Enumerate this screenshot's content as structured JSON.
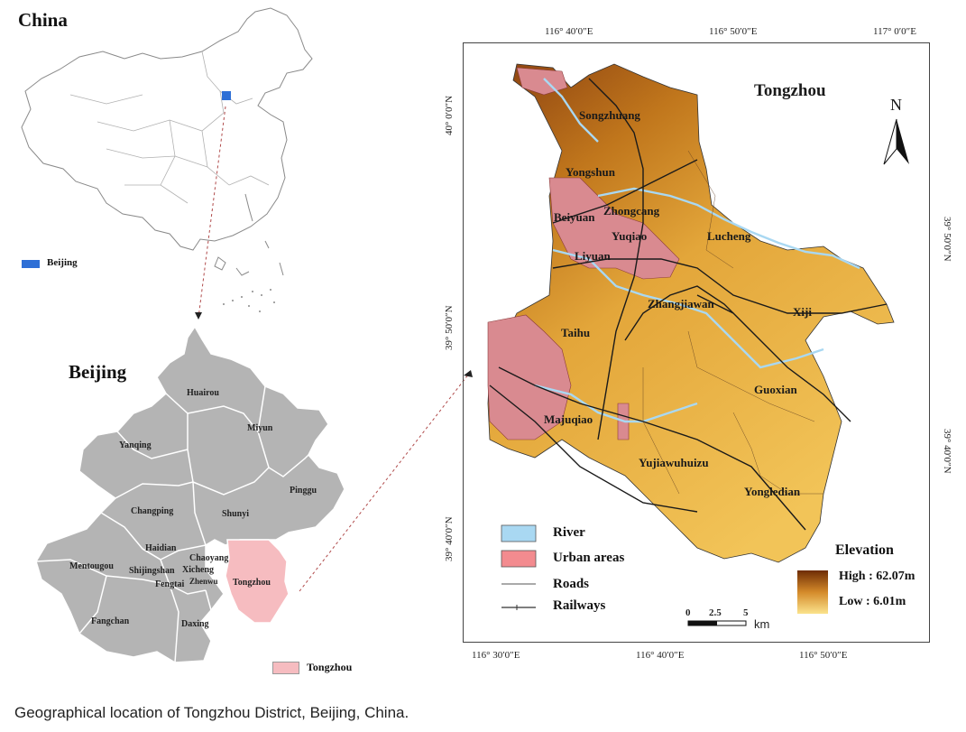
{
  "china_panel": {
    "title": "China",
    "legend_label": "Beijing",
    "legend_color": "#2e6fd6"
  },
  "beijing_panel": {
    "title": "Beijing",
    "districts": [
      "Huairou",
      "Miyun",
      "Yanqing",
      "Pinggu",
      "Changping",
      "Shunyi",
      "Haidian",
      "Chaoyang",
      "Mentougou",
      "Shijingshan",
      "Xicheng",
      "Fengtai",
      "Zhenwu",
      "Tongzhou",
      "Fangchan",
      "Daxing"
    ],
    "legend_label": "Tongzhou",
    "highlight_color": "#f6bcc0",
    "district_fill": "#b4b4b4"
  },
  "tongzhou_panel": {
    "title": "Tongzhou",
    "north_label": "N",
    "places": [
      "Songzhuang",
      "Yongshun",
      "Beiyuan",
      "Zhongcang",
      "Yuqiao",
      "Liyuan",
      "Lucheng",
      "Zhangjiawan",
      "Xiji",
      "Taihu",
      "Guoxian",
      "Majuqiao",
      "Yujiawuhuizu",
      "Yongledian"
    ],
    "top_coords": [
      "116° 40′0″E",
      "116° 50′0″E",
      "117° 0′0″E"
    ],
    "bottom_coords": [
      "116° 30′0″E",
      "116° 40′0″E",
      "116° 50′0″E"
    ],
    "left_coords": [
      "40° 0′0″N",
      "39° 50′0″N",
      "39° 40′0″N"
    ],
    "right_coords": [
      "39° 50′0″N",
      "39° 40′0″N"
    ],
    "legend": {
      "river": "River",
      "urban": "Urban areas",
      "roads": "Roads",
      "railways": "Railways",
      "river_color": "#a9d8f2",
      "urban_color": "#f38b8f"
    },
    "elevation": {
      "title": "Elevation",
      "high": "High : 62.07m",
      "low": "Low : 6.01m",
      "high_color": "#6e2c05",
      "low_color": "#fbe38c"
    },
    "scale": {
      "ticks": [
        "0",
        "2.5",
        "5"
      ],
      "unit": "km"
    }
  },
  "caption": "Geographical location of Tongzhou District, Beijing, China."
}
